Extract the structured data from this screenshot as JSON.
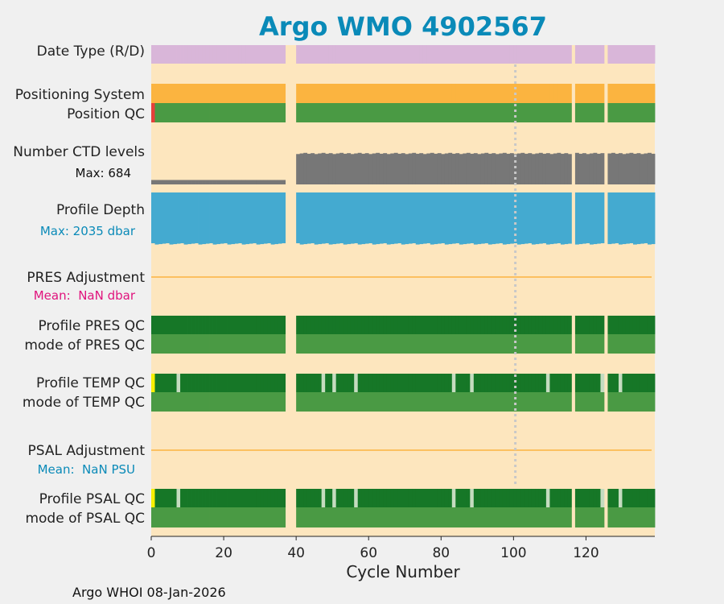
{
  "chart_data": {
    "type": "status-strips",
    "title": "Argo WMO 4902567",
    "xlabel": "Cycle Number",
    "xlim": [
      0,
      139
    ],
    "xticks": [
      0,
      20,
      40,
      60,
      80,
      100,
      120
    ],
    "marker_cycle": 100,
    "gap_cycles": [
      37,
      38,
      39,
      116,
      125
    ],
    "footer": "Argo WHOI 08-Jan-2026",
    "colors": {
      "title": "#0a8ab8",
      "background": "#fde6be",
      "date_type": "#d9b6d9",
      "positioning": "#fbb440",
      "qc_good": "#4a9a44",
      "qc_probably_good": "#167727",
      "qc_bad": "#e6403a",
      "qc_questionable": "#f8f000",
      "qc_light": "#c5dcc0",
      "ctd": "#777777",
      "depth": "#44aad0",
      "adjust_line": "#fbb440",
      "marker": "#c8c8c8",
      "stat_pres": "#e0147d",
      "stat_cyan": "#0a8ab8"
    },
    "rows": {
      "date_type": {
        "label": "Date Type (R/D)"
      },
      "positioning_system": {
        "label": "Positioning System"
      },
      "position_qc": {
        "label": "Position QC",
        "bad_cycles": [
          0
        ]
      },
      "number_ctd_levels": {
        "label": "Number CTD levels",
        "stat": "Max: 684",
        "max": 684
      },
      "profile_depth": {
        "label": "Profile Depth",
        "stat": "Max: 2035 dbar",
        "max": 2035
      },
      "pres_adjustment": {
        "label": "PRES Adjustment",
        "stat": "Mean:  NaN dbar"
      },
      "profile_pres_qc": {
        "label": "Profile PRES QC"
      },
      "mode_pres_qc": {
        "label": "mode of PRES QC"
      },
      "profile_temp_qc": {
        "label": "Profile TEMP QC",
        "yellow_cycles": [
          0
        ],
        "light_cycles": [
          7,
          47,
          50,
          56,
          83,
          88,
          109,
          124,
          129
        ]
      },
      "mode_temp_qc": {
        "label": "mode of TEMP QC"
      },
      "psal_adjustment": {
        "label": "PSAL Adjustment",
        "stat": "Mean:  NaN PSU"
      },
      "profile_psal_qc": {
        "label": "Profile PSAL QC",
        "yellow_cycles": [
          0
        ],
        "light_cycles": [
          7,
          47,
          50,
          56,
          83,
          88,
          109,
          124,
          129
        ]
      },
      "mode_psal_qc": {
        "label": "mode of PSAL QC"
      }
    },
    "ctd_levels": {
      "early_fraction": 0.12,
      "late_fraction": 0.82,
      "transition_cycle": 40
    },
    "depth_fraction": 0.97
  }
}
